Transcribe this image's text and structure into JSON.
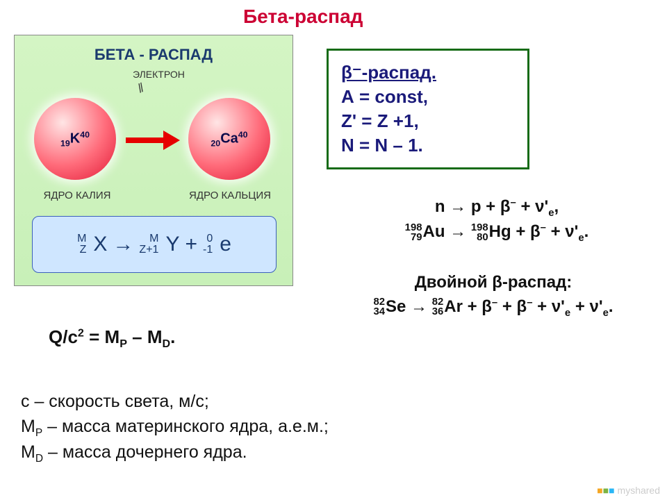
{
  "title": "Бета-распад",
  "diagram": {
    "heading": "БЕТА - РАСПАД",
    "particle_label": "ЭЛЕКТРОН",
    "left_nucleus": {
      "pre_sub": "19",
      "sym": "K",
      "post_sup": "40",
      "caption": "ЯДРО КАЛИЯ"
    },
    "right_nucleus": {
      "pre_sub": "20",
      "sym": "Ca",
      "post_sup": "40",
      "caption": "ЯДРО КАЛЬЦИЯ"
    },
    "equation": {
      "X_top": "M",
      "X_bot": "Z",
      "X": "X",
      "Y_top": "M",
      "Y_bot": "Z+1",
      "Y": "Y",
      "e_top": "0",
      "e_bot": "-1",
      "e": "e"
    },
    "colors": {
      "panel_bg_top": "#d4f5c4",
      "panel_bg_bot": "#c8f0b8",
      "eq_bg": "#cfe6ff",
      "eq_border": "#3a5fbb",
      "nucleus_grad": [
        "#ffe5e5",
        "#ff6b7a",
        "#e82b45"
      ],
      "arrow": "#e60000",
      "text": "#1a3a6e"
    }
  },
  "rule_box": {
    "line1": "β⁻-распад.",
    "line2": "А = const,",
    "line3": "Z' = Z +1,",
    "line4": "N = N – 1.",
    "border": "#176b17",
    "text_color": "#1a1a7a"
  },
  "reactions": {
    "line1": "n → p + β⁻ + ν'ₑ,",
    "line2_pre_top": "198",
    "line2_pre_bot": "79",
    "line2_el1": "Au",
    "line2_pre2_top": "198",
    "line2_pre2_bot": "80",
    "line2_el2": "Hg",
    "line2_tail": " + β⁻ + ν'ₑ."
  },
  "double": {
    "title": "Двойной β-распад:",
    "pre1_top": "82",
    "pre1_bot": "34",
    "el1": "Se",
    "pre2_top": "82",
    "pre2_bot": "36",
    "el2": "Ar",
    "tail": " + β⁻ + β⁻ + ν'ₑ + ν'ₑ."
  },
  "q_equation": "Q/c² = Mₚ – M_D.",
  "definitions": {
    "l1": "с – скорость света, м/с;",
    "l2": "Mₚ – масса материнского ядра, а.е.м.;",
    "l3": "M_D – масса дочернего ядра."
  },
  "watermark": "myshared",
  "title_color": "#cc0033"
}
